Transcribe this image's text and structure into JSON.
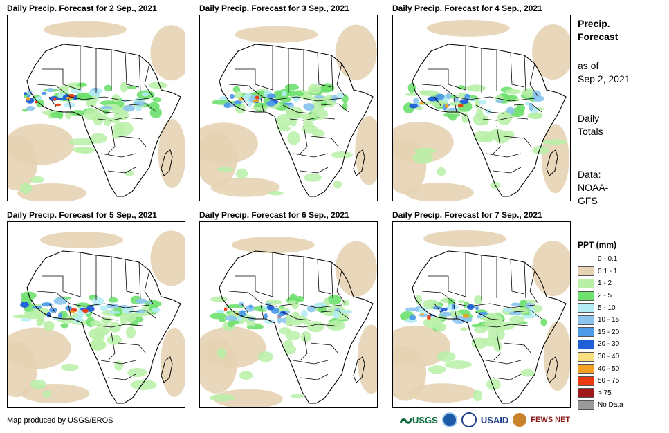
{
  "panels": [
    {
      "title": "Daily Precip. Forecast for 2 Sep., 2021",
      "id": "p1"
    },
    {
      "title": "Daily Precip. Forecast for 3 Sep., 2021",
      "id": "p2"
    },
    {
      "title": "Daily Precip. Forecast for 4 Sep., 2021",
      "id": "p3"
    },
    {
      "title": "Daily Precip. Forecast for 5 Sep., 2021",
      "id": "p4"
    },
    {
      "title": "Daily Precip. Forecast for 6 Sep., 2021",
      "id": "p5"
    },
    {
      "title": "Daily Precip. Forecast for 7 Sep., 2021",
      "id": "p6"
    }
  ],
  "sidebar": {
    "title_line1": "Precip.",
    "title_line2": "Forecast",
    "asof_line1": "as of",
    "asof_line2": "Sep 2, 2021",
    "daily_line1": "Daily",
    "daily_line2": "Totals",
    "data_line1": "Data:",
    "data_line2": "NOAA-",
    "data_line3": "GFS"
  },
  "legend": {
    "title": "PPT (mm)",
    "items": [
      {
        "label": "0 - 0.1",
        "color": "#ffffff"
      },
      {
        "label": "0.1 - 1",
        "color": "#e6d3b3"
      },
      {
        "label": "1 - 2",
        "color": "#b8f0a8"
      },
      {
        "label": "2 - 5",
        "color": "#6ee06e"
      },
      {
        "label": "5 - 10",
        "color": "#b4ecf4"
      },
      {
        "label": "10 - 15",
        "color": "#8cc4ee"
      },
      {
        "label": "15 - 20",
        "color": "#4f9be8"
      },
      {
        "label": "20 - 30",
        "color": "#1f5fd8"
      },
      {
        "label": "30 - 40",
        "color": "#f8e080"
      },
      {
        "label": "40 - 50",
        "color": "#f4a020"
      },
      {
        "label": "50 - 75",
        "color": "#ec3a10"
      },
      {
        "label": "> 75",
        "color": "#a01818"
      },
      {
        "label": "No Data",
        "color": "#999999"
      }
    ]
  },
  "credit": "Map produced by USGS/EROS",
  "logos": {
    "usgs": "USGS",
    "usaid": "USAID",
    "fews": "FEWS NET"
  }
}
